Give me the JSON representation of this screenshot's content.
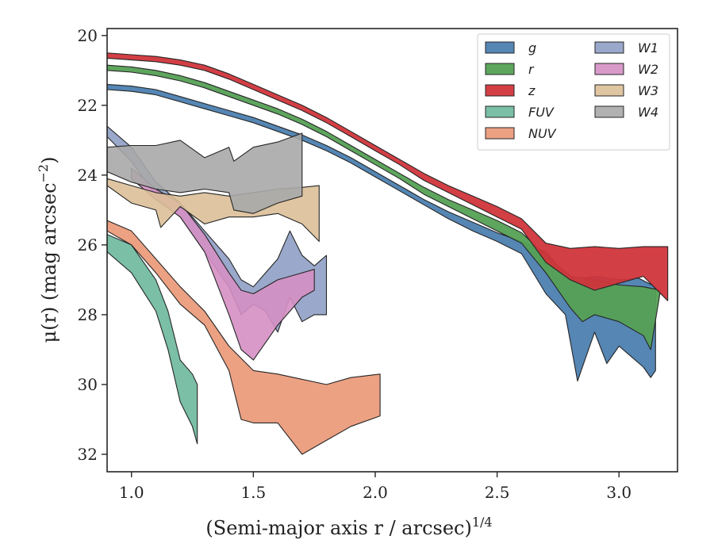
{
  "chart_data": {
    "type": "area",
    "xlabel": "(Semi-major axis r / arcsec)",
    "xlabel_exponent": "1/4",
    "ylabel": "μ(r) (mag arcsec",
    "ylabel_exponent": "−2",
    "ylabel_close": ")",
    "xlim": [
      0.9,
      3.24
    ],
    "ylim": [
      32.5,
      19.8
    ],
    "y_inverted": true,
    "xticks": [
      1.0,
      1.5,
      2.0,
      2.5,
      3.0
    ],
    "xtick_labels": [
      "1.0",
      "1.5",
      "2.0",
      "2.5",
      "3.0"
    ],
    "yticks": [
      20,
      22,
      24,
      26,
      28,
      30,
      32
    ],
    "ytick_labels": [
      "20",
      "22",
      "24",
      "26",
      "28",
      "30",
      "32"
    ],
    "grid": false,
    "legend_position": "top-right",
    "legend_columns": 2,
    "series": [
      {
        "name": "g",
        "color": "#4c7fb0",
        "opacity": 0.95,
        "upper": [
          [
            0.9,
            21.4
          ],
          [
            1.0,
            21.45
          ],
          [
            1.1,
            21.55
          ],
          [
            1.2,
            21.75
          ],
          [
            1.3,
            21.95
          ],
          [
            1.4,
            22.15
          ],
          [
            1.5,
            22.35
          ],
          [
            1.6,
            22.6
          ],
          [
            1.7,
            22.85
          ],
          [
            1.8,
            23.15
          ],
          [
            1.9,
            23.5
          ],
          [
            2.0,
            23.9
          ],
          [
            2.1,
            24.3
          ],
          [
            2.2,
            24.7
          ],
          [
            2.3,
            25.05
          ],
          [
            2.4,
            25.35
          ],
          [
            2.5,
            25.65
          ],
          [
            2.6,
            25.9
          ],
          [
            2.7,
            26.2
          ],
          [
            2.75,
            26.6
          ],
          [
            2.82,
            27.0
          ],
          [
            2.9,
            26.9
          ],
          [
            3.0,
            27.0
          ],
          [
            3.08,
            26.95
          ],
          [
            3.15,
            27.2
          ]
        ],
        "lower": [
          [
            0.9,
            21.55
          ],
          [
            1.0,
            21.6
          ],
          [
            1.1,
            21.7
          ],
          [
            1.2,
            21.9
          ],
          [
            1.3,
            22.1
          ],
          [
            1.4,
            22.3
          ],
          [
            1.5,
            22.5
          ],
          [
            1.6,
            22.75
          ],
          [
            1.7,
            23.0
          ],
          [
            1.8,
            23.3
          ],
          [
            1.9,
            23.65
          ],
          [
            2.0,
            24.05
          ],
          [
            2.1,
            24.45
          ],
          [
            2.2,
            24.85
          ],
          [
            2.3,
            25.25
          ],
          [
            2.4,
            25.6
          ],
          [
            2.5,
            25.9
          ],
          [
            2.6,
            26.25
          ],
          [
            2.7,
            27.4
          ],
          [
            2.78,
            28.0
          ],
          [
            2.83,
            29.9
          ],
          [
            2.9,
            28.5
          ],
          [
            2.95,
            29.4
          ],
          [
            3.0,
            28.9
          ],
          [
            3.05,
            29.2
          ],
          [
            3.1,
            29.5
          ],
          [
            3.13,
            29.8
          ],
          [
            3.15,
            29.6
          ]
        ]
      },
      {
        "name": "r",
        "color": "#55a055",
        "opacity": 0.95,
        "upper": [
          [
            0.9,
            20.85
          ],
          [
            1.0,
            20.9
          ],
          [
            1.1,
            21.0
          ],
          [
            1.2,
            21.15
          ],
          [
            1.3,
            21.35
          ],
          [
            1.4,
            21.6
          ],
          [
            1.5,
            21.85
          ],
          [
            1.6,
            22.1
          ],
          [
            1.7,
            22.4
          ],
          [
            1.8,
            22.75
          ],
          [
            1.9,
            23.15
          ],
          [
            2.0,
            23.55
          ],
          [
            2.1,
            23.95
          ],
          [
            2.2,
            24.35
          ],
          [
            2.3,
            24.7
          ],
          [
            2.4,
            25.0
          ],
          [
            2.5,
            25.3
          ],
          [
            2.6,
            25.65
          ],
          [
            2.7,
            26.3
          ],
          [
            2.8,
            26.9
          ],
          [
            2.9,
            27.0
          ],
          [
            3.0,
            27.15
          ],
          [
            3.1,
            27.2
          ],
          [
            3.17,
            27.3
          ]
        ],
        "lower": [
          [
            0.9,
            21.0
          ],
          [
            1.0,
            21.05
          ],
          [
            1.1,
            21.15
          ],
          [
            1.2,
            21.3
          ],
          [
            1.3,
            21.5
          ],
          [
            1.4,
            21.75
          ],
          [
            1.5,
            22.0
          ],
          [
            1.6,
            22.25
          ],
          [
            1.7,
            22.55
          ],
          [
            1.8,
            22.9
          ],
          [
            1.9,
            23.3
          ],
          [
            2.0,
            23.7
          ],
          [
            2.1,
            24.1
          ],
          [
            2.2,
            24.55
          ],
          [
            2.3,
            24.9
          ],
          [
            2.4,
            25.25
          ],
          [
            2.5,
            25.6
          ],
          [
            2.6,
            25.95
          ],
          [
            2.7,
            26.8
          ],
          [
            2.8,
            27.8
          ],
          [
            2.85,
            28.2
          ],
          [
            2.9,
            28.0
          ],
          [
            3.0,
            28.2
          ],
          [
            3.1,
            28.6
          ],
          [
            3.13,
            29.0
          ]
        ]
      },
      {
        "name": "z",
        "color": "#d0353b",
        "opacity": 0.95,
        "upper": [
          [
            0.9,
            20.5
          ],
          [
            1.0,
            20.55
          ],
          [
            1.1,
            20.6
          ],
          [
            1.2,
            20.7
          ],
          [
            1.3,
            20.85
          ],
          [
            1.4,
            21.1
          ],
          [
            1.5,
            21.4
          ],
          [
            1.6,
            21.7
          ],
          [
            1.7,
            22.0
          ],
          [
            1.8,
            22.35
          ],
          [
            1.9,
            22.75
          ],
          [
            2.0,
            23.15
          ],
          [
            2.1,
            23.55
          ],
          [
            2.2,
            23.95
          ],
          [
            2.3,
            24.3
          ],
          [
            2.4,
            24.6
          ],
          [
            2.5,
            24.9
          ],
          [
            2.6,
            25.25
          ],
          [
            2.7,
            25.95
          ],
          [
            2.8,
            26.1
          ],
          [
            2.9,
            26.05
          ],
          [
            3.0,
            26.1
          ],
          [
            3.1,
            26.05
          ],
          [
            3.2,
            26.05
          ]
        ],
        "lower": [
          [
            0.9,
            20.65
          ],
          [
            1.0,
            20.7
          ],
          [
            1.1,
            20.75
          ],
          [
            1.2,
            20.85
          ],
          [
            1.3,
            21.0
          ],
          [
            1.4,
            21.25
          ],
          [
            1.5,
            21.55
          ],
          [
            1.6,
            21.85
          ],
          [
            1.7,
            22.15
          ],
          [
            1.8,
            22.5
          ],
          [
            1.9,
            22.9
          ],
          [
            2.0,
            23.3
          ],
          [
            2.1,
            23.7
          ],
          [
            2.2,
            24.15
          ],
          [
            2.3,
            24.5
          ],
          [
            2.4,
            24.85
          ],
          [
            2.5,
            25.2
          ],
          [
            2.6,
            25.55
          ],
          [
            2.7,
            26.5
          ],
          [
            2.8,
            27.0
          ],
          [
            2.9,
            27.3
          ],
          [
            3.0,
            27.1
          ],
          [
            3.1,
            26.9
          ],
          [
            3.2,
            27.6
          ]
        ]
      },
      {
        "name": "FUV",
        "color": "#6bb89c",
        "opacity": 0.9,
        "upper": [
          [
            0.9,
            25.7
          ],
          [
            1.0,
            26.0
          ],
          [
            1.1,
            27.0
          ],
          [
            1.15,
            27.9
          ],
          [
            1.2,
            29.3
          ],
          [
            1.25,
            29.7
          ],
          [
            1.27,
            30.0
          ]
        ],
        "lower": [
          [
            0.9,
            26.2
          ],
          [
            1.0,
            26.8
          ],
          [
            1.1,
            27.9
          ],
          [
            1.15,
            29.0
          ],
          [
            1.2,
            30.5
          ],
          [
            1.25,
            31.2
          ],
          [
            1.27,
            31.7
          ]
        ]
      },
      {
        "name": "NUV",
        "color": "#ea9776",
        "opacity": 0.9,
        "upper": [
          [
            0.9,
            25.3
          ],
          [
            1.0,
            25.6
          ],
          [
            1.1,
            26.4
          ],
          [
            1.2,
            27.2
          ],
          [
            1.3,
            27.9
          ],
          [
            1.4,
            28.9
          ],
          [
            1.5,
            29.6
          ],
          [
            1.6,
            29.7
          ],
          [
            1.7,
            29.85
          ],
          [
            1.8,
            30.0
          ],
          [
            1.9,
            29.8
          ],
          [
            2.02,
            29.7
          ]
        ],
        "lower": [
          [
            0.9,
            25.6
          ],
          [
            1.0,
            26.0
          ],
          [
            1.1,
            26.8
          ],
          [
            1.2,
            27.7
          ],
          [
            1.3,
            28.3
          ],
          [
            1.4,
            29.6
          ],
          [
            1.45,
            31.0
          ],
          [
            1.5,
            31.1
          ],
          [
            1.6,
            31.1
          ],
          [
            1.7,
            32.0
          ],
          [
            1.8,
            31.6
          ],
          [
            1.9,
            31.2
          ],
          [
            2.02,
            30.9
          ]
        ]
      },
      {
        "name": "W1",
        "color": "#8f9fc5",
        "opacity": 0.9,
        "upper": [
          [
            0.9,
            22.6
          ],
          [
            1.0,
            23.2
          ],
          [
            1.1,
            24.2
          ],
          [
            1.2,
            24.8
          ],
          [
            1.3,
            25.6
          ],
          [
            1.4,
            26.4
          ],
          [
            1.45,
            27.0
          ],
          [
            1.5,
            27.2
          ],
          [
            1.55,
            26.8
          ],
          [
            1.6,
            26.4
          ],
          [
            1.65,
            25.6
          ],
          [
            1.7,
            26.3
          ],
          [
            1.75,
            26.6
          ],
          [
            1.8,
            26.3
          ]
        ],
        "lower": [
          [
            0.9,
            22.9
          ],
          [
            1.0,
            23.6
          ],
          [
            1.1,
            24.6
          ],
          [
            1.2,
            25.2
          ],
          [
            1.3,
            26.2
          ],
          [
            1.4,
            27.2
          ],
          [
            1.45,
            28.0
          ],
          [
            1.5,
            27.7
          ],
          [
            1.55,
            27.9
          ],
          [
            1.6,
            28.5
          ],
          [
            1.65,
            27.5
          ],
          [
            1.7,
            28.2
          ],
          [
            1.75,
            28.0
          ],
          [
            1.8,
            28.0
          ]
        ]
      },
      {
        "name": "W2",
        "color": "#d58fc4",
        "opacity": 0.9,
        "upper": [
          [
            1.0,
            23.8
          ],
          [
            1.1,
            24.4
          ],
          [
            1.2,
            24.8
          ],
          [
            1.3,
            25.7
          ],
          [
            1.4,
            26.8
          ],
          [
            1.45,
            27.3
          ],
          [
            1.5,
            27.4
          ],
          [
            1.6,
            27.0
          ],
          [
            1.7,
            26.8
          ],
          [
            1.75,
            26.7
          ]
        ],
        "lower": [
          [
            1.0,
            24.1
          ],
          [
            1.1,
            24.7
          ],
          [
            1.2,
            25.2
          ],
          [
            1.3,
            26.2
          ],
          [
            1.4,
            28.0
          ],
          [
            1.45,
            29.0
          ],
          [
            1.5,
            29.3
          ],
          [
            1.6,
            28.3
          ],
          [
            1.7,
            27.5
          ],
          [
            1.75,
            27.3
          ]
        ]
      },
      {
        "name": "W3",
        "color": "#dcbf98",
        "opacity": 0.9,
        "upper": [
          [
            0.9,
            24.1
          ],
          [
            1.0,
            24.3
          ],
          [
            1.1,
            24.5
          ],
          [
            1.2,
            24.6
          ],
          [
            1.3,
            24.5
          ],
          [
            1.4,
            24.6
          ],
          [
            1.5,
            24.5
          ],
          [
            1.6,
            24.4
          ],
          [
            1.7,
            24.35
          ],
          [
            1.77,
            24.3
          ]
        ],
        "lower": [
          [
            0.9,
            24.3
          ],
          [
            1.0,
            24.8
          ],
          [
            1.1,
            25.0
          ],
          [
            1.12,
            25.5
          ],
          [
            1.2,
            24.9
          ],
          [
            1.3,
            25.4
          ],
          [
            1.4,
            25.2
          ],
          [
            1.5,
            25.2
          ],
          [
            1.6,
            25.1
          ],
          [
            1.7,
            25.4
          ],
          [
            1.77,
            25.9
          ]
        ]
      },
      {
        "name": "W4",
        "color": "#a8a8a8",
        "opacity": 0.9,
        "upper": [
          [
            0.9,
            23.2
          ],
          [
            1.0,
            23.15
          ],
          [
            1.1,
            23.15
          ],
          [
            1.2,
            23.0
          ],
          [
            1.3,
            23.5
          ],
          [
            1.4,
            23.2
          ],
          [
            1.42,
            23.6
          ],
          [
            1.5,
            23.2
          ],
          [
            1.6,
            23.05
          ],
          [
            1.7,
            22.8
          ]
        ],
        "lower": [
          [
            0.9,
            23.9
          ],
          [
            1.0,
            24.2
          ],
          [
            1.1,
            24.4
          ],
          [
            1.2,
            24.5
          ],
          [
            1.3,
            24.4
          ],
          [
            1.4,
            24.5
          ],
          [
            1.42,
            25.0
          ],
          [
            1.5,
            25.1
          ],
          [
            1.6,
            24.8
          ],
          [
            1.7,
            24.6
          ]
        ]
      }
    ]
  }
}
